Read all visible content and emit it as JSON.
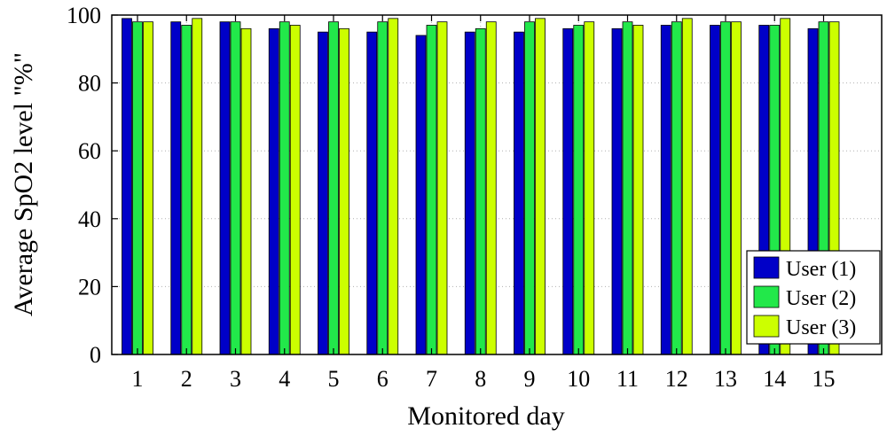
{
  "chart_data": {
    "type": "bar",
    "xlabel": "Monitored day",
    "ylabel": "Average SpO2 level \"%\"",
    "ylim": [
      0,
      100
    ],
    "yticks": [
      0,
      20,
      40,
      60,
      80,
      100
    ],
    "grid": true,
    "legend_position": "bottom-right",
    "categories": [
      "1",
      "2",
      "3",
      "4",
      "5",
      "6",
      "7",
      "8",
      "9",
      "10",
      "11",
      "12",
      "13",
      "14",
      "15"
    ],
    "series": [
      {
        "name": "User (1)",
        "color": "#0000c8",
        "values": [
          99,
          98,
          98,
          96,
          95,
          95,
          94,
          95,
          95,
          96,
          96,
          97,
          97,
          97,
          96
        ]
      },
      {
        "name": "User (2)",
        "color": "#22e84a",
        "values": [
          98,
          97,
          98,
          98,
          98,
          98,
          97,
          96,
          98,
          97,
          98,
          98,
          98,
          97,
          98
        ]
      },
      {
        "name": "User (3)",
        "color": "#ccff00",
        "values": [
          98,
          99,
          96,
          97,
          96,
          99,
          98,
          98,
          99,
          98,
          97,
          99,
          98,
          99,
          98
        ]
      }
    ]
  }
}
